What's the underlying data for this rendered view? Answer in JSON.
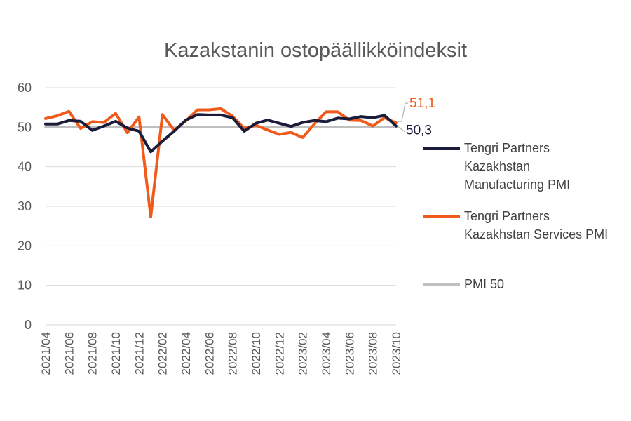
{
  "chart_data": {
    "type": "line",
    "title": "Kazakstanin ostopäällikköindeksit",
    "x": [
      "2021/04",
      "2021/05",
      "2021/06",
      "2021/07",
      "2021/08",
      "2021/09",
      "2021/10",
      "2021/11",
      "2021/12",
      "2022/01",
      "2022/02",
      "2022/03",
      "2022/04",
      "2022/05",
      "2022/06",
      "2022/07",
      "2022/08",
      "2022/09",
      "2022/10",
      "2022/11",
      "2022/12",
      "2023/01",
      "2023/02",
      "2023/03",
      "2023/04",
      "2023/05",
      "2023/06",
      "2023/07",
      "2023/08",
      "2023/09",
      "2023/10"
    ],
    "xticks": [
      "2021/04",
      "2021/06",
      "2021/08",
      "2021/10",
      "2021/12",
      "2022/02",
      "2022/04",
      "2022/06",
      "2022/08",
      "2022/10",
      "2022/12",
      "2023/02",
      "2023/04",
      "2023/06",
      "2023/08",
      "2023/10"
    ],
    "yticks": [
      "0",
      "10",
      "20",
      "30",
      "40",
      "50",
      "60"
    ],
    "ylim": [
      0,
      60
    ],
    "grid": true,
    "legend_position": "right",
    "series": [
      {
        "name": "Tengri Partners Kazakhstan Manufacturing PMI",
        "legend_lines": [
          "Tengri Partners",
          "Kazakhstan",
          "Manufacturing PMI"
        ],
        "color": "#1b1b3a",
        "values": [
          50.8,
          50.8,
          51.7,
          51.5,
          49.2,
          50.3,
          51.5,
          49.8,
          49.0,
          43.8,
          46.5,
          49.0,
          51.8,
          53.2,
          53.1,
          53.1,
          52.4,
          49.0,
          51.0,
          51.8,
          51.0,
          50.2,
          51.2,
          51.7,
          51.4,
          52.3,
          52.1,
          52.7,
          52.4,
          53.0,
          50.3
        ],
        "end_label": "50,3",
        "end_label_color": "#1b1b3a"
      },
      {
        "name": "Tengri Partners Kazakhstan Services PMI",
        "legend_lines": [
          "Tengri Partners",
          "Kazakhstan Services PMI"
        ],
        "color": "#f05a1a",
        "values": [
          52.2,
          52.9,
          54.0,
          49.7,
          51.4,
          51.2,
          53.5,
          48.6,
          52.6,
          27.3,
          53.2,
          49.2,
          51.6,
          54.4,
          54.4,
          54.7,
          52.8,
          49.7,
          50.5,
          49.3,
          48.2,
          48.7,
          47.4,
          50.8,
          53.9,
          53.9,
          51.8,
          51.7,
          50.3,
          52.4,
          51.1
        ],
        "end_label": "51,1",
        "end_label_color": "#f05a1a"
      },
      {
        "name": "PMI 50",
        "legend_lines": [
          "PMI 50"
        ],
        "color": "#bfbfbf",
        "constant": 50
      }
    ]
  }
}
